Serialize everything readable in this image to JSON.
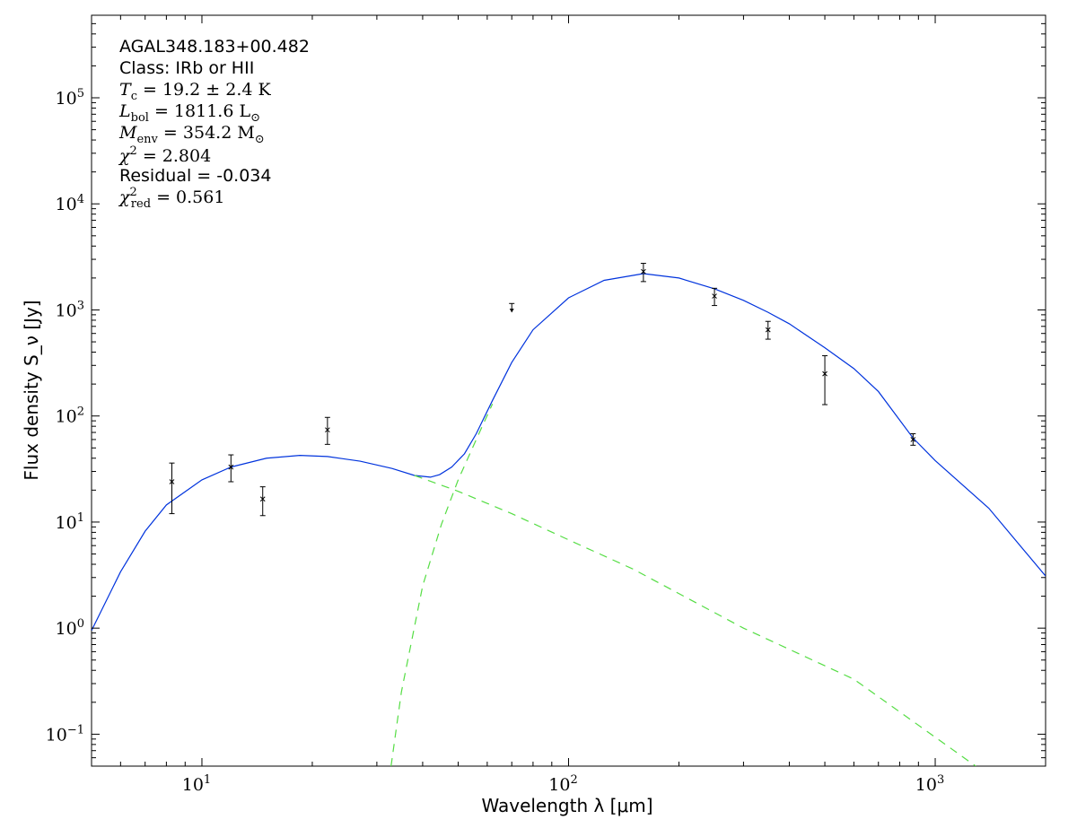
{
  "chart_data": {
    "type": "scatter",
    "x_scale": "log",
    "y_scale": "log",
    "xlim": [
      5,
      2000
    ],
    "ylim": [
      0.05,
      600000
    ],
    "grid": false,
    "xlabel": "Wavelength λ [μm]",
    "ylabel": "Flux density S_ν [Jy]",
    "annotations": {
      "source": "AGAL348.183+00.482",
      "class": "Class: IRb or HII",
      "tc_name": "T",
      "tc_sub": "c",
      "tc_value": " = 19.2 ± 2.4 K",
      "lbol_name": "L",
      "lbol_sub": "bol",
      "lbol_value": " = 1811.6 L",
      "lbol_unit_sub": "⊙",
      "menv_name": "M",
      "menv_sub": "env",
      "menv_value": " = 354.2 M",
      "menv_unit_sub": "⊙",
      "chi2_name": "χ",
      "chi2_sup": "2",
      "chi2_value": " = 2.804",
      "residual": "Residual = -0.034",
      "chired_name": "χ",
      "chired_sup": "2",
      "chired_sub": "red",
      "chired_value": " = 0.561"
    },
    "x_ticks": [
      {
        "value": 10,
        "base": "10",
        "exp": "1"
      },
      {
        "value": 100,
        "base": "10",
        "exp": "2"
      },
      {
        "value": 1000,
        "base": "10",
        "exp": "3"
      }
    ],
    "y_ticks": [
      {
        "value": 0.1,
        "base": "10",
        "exp": "−1"
      },
      {
        "value": 1,
        "base": "10",
        "exp": "0"
      },
      {
        "value": 10,
        "base": "10",
        "exp": "1"
      },
      {
        "value": 100,
        "base": "10",
        "exp": "2"
      },
      {
        "value": 1000,
        "base": "10",
        "exp": "3"
      },
      {
        "value": 10000,
        "base": "10",
        "exp": "4"
      },
      {
        "value": 100000,
        "base": "10",
        "exp": "5"
      }
    ],
    "series": [
      {
        "kind": "points",
        "color": "#000000",
        "points": [
          {
            "x": 8.28,
            "y": 24,
            "ylo": 12,
            "yhi": 36
          },
          {
            "x": 12,
            "y": 33,
            "ylo": 24,
            "yhi": 43
          },
          {
            "x": 14.65,
            "y": 16.5,
            "ylo": 11.5,
            "yhi": 21.5
          },
          {
            "x": 22,
            "y": 74,
            "ylo": 54,
            "yhi": 97
          },
          {
            "x": 160,
            "y": 2300,
            "ylo": 1850,
            "yhi": 2750
          },
          {
            "x": 250,
            "y": 1350,
            "ylo": 1100,
            "yhi": 1600
          },
          {
            "x": 350,
            "y": 650,
            "ylo": 530,
            "yhi": 780
          },
          {
            "x": 500,
            "y": 250,
            "ylo": 128,
            "yhi": 370
          },
          {
            "x": 870,
            "y": 60,
            "ylo": 53,
            "yhi": 68
          }
        ],
        "upper_limits": [
          {
            "x": 70,
            "y": 1150,
            "ylo": 950
          }
        ]
      },
      {
        "kind": "line",
        "color": "#0033dd",
        "dash": "solid",
        "points": [
          [
            5,
            0.95
          ],
          [
            6,
            3.4
          ],
          [
            7,
            8.2
          ],
          [
            8,
            14.5
          ],
          [
            10,
            25
          ],
          [
            12,
            33
          ],
          [
            15,
            40
          ],
          [
            18.5,
            42.5
          ],
          [
            22,
            41.5
          ],
          [
            27,
            37.5
          ],
          [
            33,
            32
          ],
          [
            38,
            27.5
          ],
          [
            42,
            26.5
          ],
          [
            44.5,
            28
          ],
          [
            48,
            33
          ],
          [
            52,
            44
          ],
          [
            56,
            68
          ],
          [
            62,
            140
          ],
          [
            70,
            320
          ],
          [
            80,
            650
          ],
          [
            100,
            1300
          ],
          [
            125,
            1900
          ],
          [
            160,
            2200
          ],
          [
            200,
            2000
          ],
          [
            250,
            1580
          ],
          [
            300,
            1230
          ],
          [
            350,
            950
          ],
          [
            400,
            740
          ],
          [
            500,
            440
          ],
          [
            600,
            280
          ],
          [
            700,
            170
          ],
          [
            870,
            62
          ],
          [
            1000,
            38
          ],
          [
            1400,
            13.5
          ],
          [
            2000,
            3.1
          ]
        ]
      },
      {
        "kind": "line",
        "color": "#55dd44",
        "dash": "dashed",
        "points": [
          [
            38,
            27.5
          ],
          [
            50,
            19.5
          ],
          [
            70,
            12
          ],
          [
            100,
            6.8
          ],
          [
            150,
            3.6
          ],
          [
            300,
            1.0
          ],
          [
            600,
            0.33
          ],
          [
            1290,
            0.05
          ]
        ]
      },
      {
        "kind": "line",
        "color": "#55dd44",
        "dash": "dashed",
        "points": [
          [
            32.8,
            0.05
          ],
          [
            35,
            0.25
          ],
          [
            40,
            2.5
          ],
          [
            45,
            9.5
          ],
          [
            50,
            25
          ],
          [
            56,
            60
          ],
          [
            62,
            130
          ]
        ]
      }
    ]
  }
}
